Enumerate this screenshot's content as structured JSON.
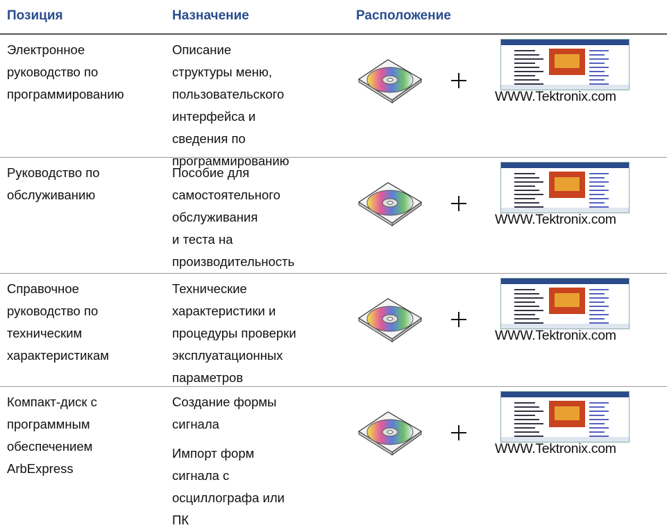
{
  "header": {
    "columns": [
      "Позиция",
      "Назначение",
      "Расположение"
    ]
  },
  "rows": [
    {
      "position": [
        "Электронное",
        "руководство по",
        "программированию"
      ],
      "purpose": [
        [
          "Описание",
          "структуры меню,",
          "пользовательского",
          "интерфейса и",
          "сведения по",
          "программированию"
        ]
      ],
      "location": "WWW.Tektronix.com"
    },
    {
      "position": [
        "Руководство по",
        "обслуживанию"
      ],
      "purpose": [
        [
          "Пособие для",
          "самостоятельного",
          "обслуживания",
          "и теста на",
          "производительность"
        ]
      ],
      "location": "WWW.Tektronix.com"
    },
    {
      "position": [
        "Справочное",
        "руководство по",
        "техническим",
        "характеристикам"
      ],
      "purpose": [
        [
          "Технические",
          "характеристики и",
          "процедуры проверки",
          "эксплуатационных",
          "параметров"
        ]
      ],
      "location": "WWW.Tektronix.com"
    },
    {
      "position": [
        "Компакт-диск с",
        "программным",
        "обеспечением",
        "ArbExpress"
      ],
      "purpose": [
        [
          "Создание формы",
          "сигнала"
        ],
        [
          "Импорт форм",
          "сигнала с",
          "осциллографа или",
          "ПК"
        ]
      ],
      "location": "WWW.Tektronix.com"
    }
  ]
}
